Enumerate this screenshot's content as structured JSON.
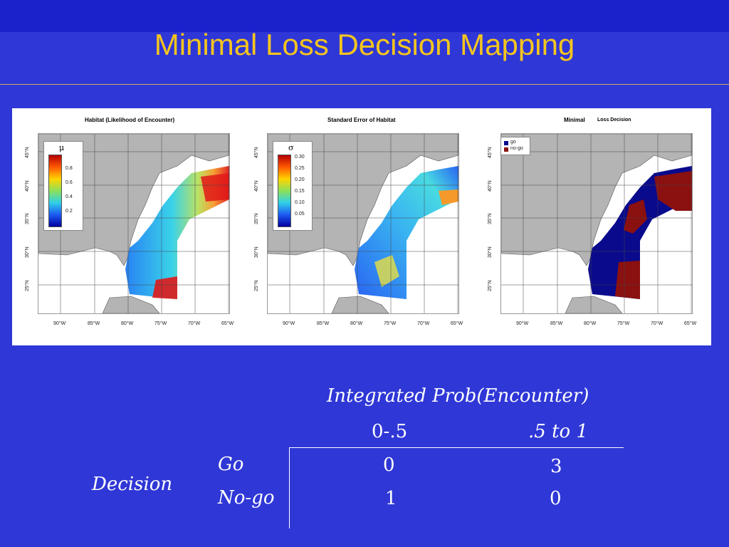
{
  "slide": {
    "title": "Minimal Loss Decision Mapping"
  },
  "panels": [
    {
      "title": "Habitat (Likelihood of Encounter)",
      "lat_labels": [
        "45°N",
        "40°N",
        "35°N",
        "30°N",
        "25°N"
      ],
      "lon_labels": [
        "90°W",
        "85°W",
        "80°W",
        "75°W",
        "70°W",
        "65°W"
      ],
      "legend_symbol": "μ",
      "legend_ticks": [
        "0.8",
        "0.6",
        "0.4",
        "0.2"
      ]
    },
    {
      "title": "Standard Error of Habitat",
      "lat_labels": [
        "45°N",
        "40°N",
        "35°N",
        "30°N",
        "25°N"
      ],
      "lon_labels": [
        "90°W",
        "85°W",
        "80°W",
        "75°W",
        "70°W",
        "65°W"
      ],
      "legend_symbol": "σ",
      "legend_ticks": [
        "0.30",
        "0.25",
        "0.20",
        "0.15",
        "0.10",
        "0.05"
      ]
    },
    {
      "title_a": "Minimal",
      "title_b": "Loss Decision",
      "lat_labels": [
        "45°N",
        "40°N",
        "35°N",
        "30°N",
        "25°N"
      ],
      "lon_labels": [
        "90°W",
        "85°W",
        "80°W",
        "75°W",
        "70°W",
        "65°W"
      ],
      "legend_entries": [
        {
          "label": "go",
          "color": "#0a0a8c"
        },
        {
          "label": "no-go",
          "color": "#8b1010"
        }
      ]
    }
  ],
  "loss_table": {
    "header": "Integrated Prob(Encounter)",
    "columns": [
      "0-.5",
      ".5 to 1"
    ],
    "row_group_label": "Decision",
    "rows": [
      {
        "label": "Go",
        "values": [
          "0",
          "3"
        ]
      },
      {
        "label": "No-go",
        "values": [
          "1",
          "0"
        ]
      }
    ]
  },
  "colors": {
    "background": "#2f37d6",
    "title": "#f5c51e",
    "land": "#b4b4b4",
    "go": "#0a0a8c",
    "nogo": "#8b1010"
  }
}
